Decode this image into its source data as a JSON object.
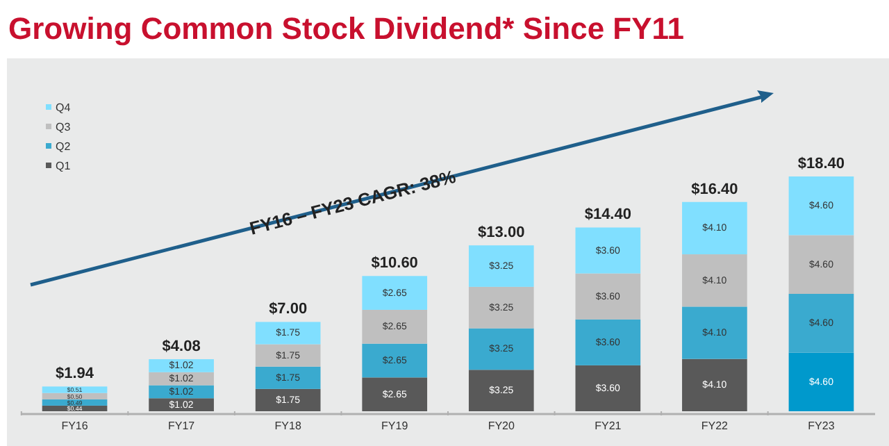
{
  "chart_data": {
    "type": "bar",
    "stacked": true,
    "title": "Growing Common Stock Dividend* Since FY11",
    "categories": [
      "FY16",
      "FY17",
      "FY18",
      "FY19",
      "FY20",
      "FY21",
      "FY22",
      "FY23"
    ],
    "series": [
      {
        "name": "Q1",
        "color": "#595959",
        "colors": [
          "#595959",
          "#595959",
          "#595959",
          "#595959",
          "#595959",
          "#595959",
          "#595959",
          "#0099cc"
        ],
        "values": [
          0.44,
          1.02,
          1.75,
          2.65,
          3.25,
          3.6,
          4.1,
          4.6
        ],
        "value_labels": [
          "$0.44",
          "$1.02",
          "$1.75",
          "$2.65",
          "$3.25",
          "$3.60",
          "$4.10",
          "$4.60"
        ]
      },
      {
        "name": "Q2",
        "color": "#3aaacf",
        "values": [
          0.49,
          1.02,
          1.75,
          2.65,
          3.25,
          3.6,
          4.1,
          4.6
        ],
        "value_labels": [
          "$0.49",
          "$1.02",
          "$1.75",
          "$2.65",
          "$3.25",
          "$3.60",
          "$4.10",
          "$4.60"
        ]
      },
      {
        "name": "Q3",
        "color": "#bfbfbf",
        "values": [
          0.5,
          1.02,
          1.75,
          2.65,
          3.25,
          3.6,
          4.1,
          4.6
        ],
        "value_labels": [
          "$0.50",
          "$1.02",
          "$1.75",
          "$2.65",
          "$3.25",
          "$3.60",
          "$4.10",
          "$4.60"
        ]
      },
      {
        "name": "Q4",
        "color": "#80dfff",
        "values": [
          0.51,
          1.02,
          1.75,
          2.65,
          3.25,
          3.6,
          4.1,
          4.6
        ],
        "value_labels": [
          "$0.51",
          "$1.02",
          "$1.75",
          "$2.65",
          "$3.25",
          "$3.60",
          "$4.10",
          "$4.60"
        ]
      }
    ],
    "totals": [
      "$1.94",
      "$4.08",
      "$7.00",
      "$10.60",
      "$13.00",
      "$14.40",
      "$16.40",
      "$18.40"
    ],
    "annotations": [
      "FY16 – FY23 CAGR: 38%"
    ],
    "legend": "top left",
    "grid": false
  }
}
